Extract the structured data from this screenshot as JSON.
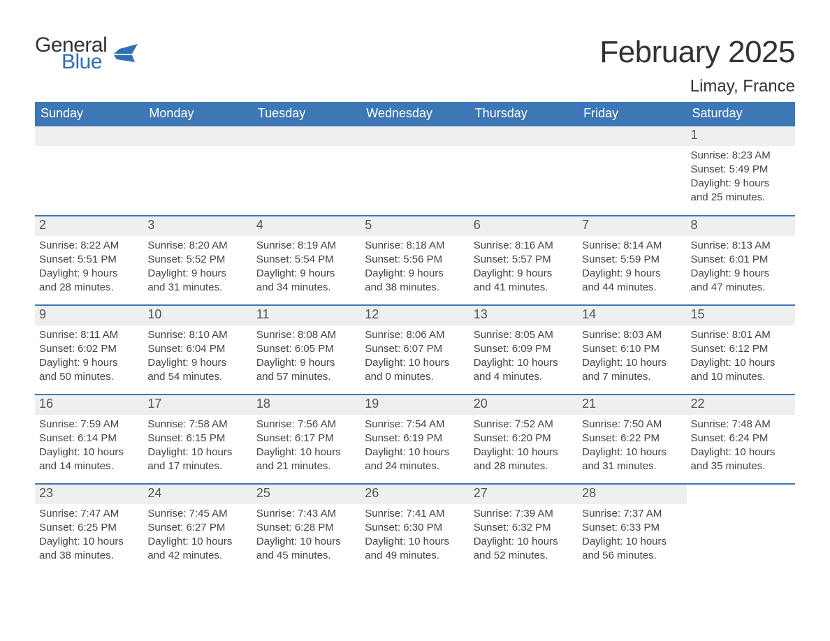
{
  "brand": {
    "word1": "General",
    "word2": "Blue",
    "word1_color": "#333333",
    "word2_color": "#2f6fb3",
    "icon_color": "#2f6fb3"
  },
  "title": {
    "month_year": "February 2025",
    "location": "Limay, France",
    "title_fontsize": 44,
    "location_fontsize": 24
  },
  "calendar": {
    "type": "calendar-table",
    "header_bg": "#3d77b6",
    "header_fg": "#ffffff",
    "row_divider_color": "#3d77b6",
    "daynum_bg": "#efefef",
    "daynum_fg": "#555555",
    "body_fg": "#444444",
    "background_color": "#ffffff",
    "header_fontsize": 18,
    "daynum_fontsize": 18,
    "body_fontsize": 15,
    "columns": [
      "Sunday",
      "Monday",
      "Tuesday",
      "Wednesday",
      "Thursday",
      "Friday",
      "Saturday"
    ],
    "weeks": [
      [
        null,
        null,
        null,
        null,
        null,
        null,
        {
          "n": "1",
          "sunrise": "Sunrise: 8:23 AM",
          "sunset": "Sunset: 5:49 PM",
          "day1": "Daylight: 9 hours",
          "day2": "and 25 minutes."
        }
      ],
      [
        {
          "n": "2",
          "sunrise": "Sunrise: 8:22 AM",
          "sunset": "Sunset: 5:51 PM",
          "day1": "Daylight: 9 hours",
          "day2": "and 28 minutes."
        },
        {
          "n": "3",
          "sunrise": "Sunrise: 8:20 AM",
          "sunset": "Sunset: 5:52 PM",
          "day1": "Daylight: 9 hours",
          "day2": "and 31 minutes."
        },
        {
          "n": "4",
          "sunrise": "Sunrise: 8:19 AM",
          "sunset": "Sunset: 5:54 PM",
          "day1": "Daylight: 9 hours",
          "day2": "and 34 minutes."
        },
        {
          "n": "5",
          "sunrise": "Sunrise: 8:18 AM",
          "sunset": "Sunset: 5:56 PM",
          "day1": "Daylight: 9 hours",
          "day2": "and 38 minutes."
        },
        {
          "n": "6",
          "sunrise": "Sunrise: 8:16 AM",
          "sunset": "Sunset: 5:57 PM",
          "day1": "Daylight: 9 hours",
          "day2": "and 41 minutes."
        },
        {
          "n": "7",
          "sunrise": "Sunrise: 8:14 AM",
          "sunset": "Sunset: 5:59 PM",
          "day1": "Daylight: 9 hours",
          "day2": "and 44 minutes."
        },
        {
          "n": "8",
          "sunrise": "Sunrise: 8:13 AM",
          "sunset": "Sunset: 6:01 PM",
          "day1": "Daylight: 9 hours",
          "day2": "and 47 minutes."
        }
      ],
      [
        {
          "n": "9",
          "sunrise": "Sunrise: 8:11 AM",
          "sunset": "Sunset: 6:02 PM",
          "day1": "Daylight: 9 hours",
          "day2": "and 50 minutes."
        },
        {
          "n": "10",
          "sunrise": "Sunrise: 8:10 AM",
          "sunset": "Sunset: 6:04 PM",
          "day1": "Daylight: 9 hours",
          "day2": "and 54 minutes."
        },
        {
          "n": "11",
          "sunrise": "Sunrise: 8:08 AM",
          "sunset": "Sunset: 6:05 PM",
          "day1": "Daylight: 9 hours",
          "day2": "and 57 minutes."
        },
        {
          "n": "12",
          "sunrise": "Sunrise: 8:06 AM",
          "sunset": "Sunset: 6:07 PM",
          "day1": "Daylight: 10 hours",
          "day2": "and 0 minutes."
        },
        {
          "n": "13",
          "sunrise": "Sunrise: 8:05 AM",
          "sunset": "Sunset: 6:09 PM",
          "day1": "Daylight: 10 hours",
          "day2": "and 4 minutes."
        },
        {
          "n": "14",
          "sunrise": "Sunrise: 8:03 AM",
          "sunset": "Sunset: 6:10 PM",
          "day1": "Daylight: 10 hours",
          "day2": "and 7 minutes."
        },
        {
          "n": "15",
          "sunrise": "Sunrise: 8:01 AM",
          "sunset": "Sunset: 6:12 PM",
          "day1": "Daylight: 10 hours",
          "day2": "and 10 minutes."
        }
      ],
      [
        {
          "n": "16",
          "sunrise": "Sunrise: 7:59 AM",
          "sunset": "Sunset: 6:14 PM",
          "day1": "Daylight: 10 hours",
          "day2": "and 14 minutes."
        },
        {
          "n": "17",
          "sunrise": "Sunrise: 7:58 AM",
          "sunset": "Sunset: 6:15 PM",
          "day1": "Daylight: 10 hours",
          "day2": "and 17 minutes."
        },
        {
          "n": "18",
          "sunrise": "Sunrise: 7:56 AM",
          "sunset": "Sunset: 6:17 PM",
          "day1": "Daylight: 10 hours",
          "day2": "and 21 minutes."
        },
        {
          "n": "19",
          "sunrise": "Sunrise: 7:54 AM",
          "sunset": "Sunset: 6:19 PM",
          "day1": "Daylight: 10 hours",
          "day2": "and 24 minutes."
        },
        {
          "n": "20",
          "sunrise": "Sunrise: 7:52 AM",
          "sunset": "Sunset: 6:20 PM",
          "day1": "Daylight: 10 hours",
          "day2": "and 28 minutes."
        },
        {
          "n": "21",
          "sunrise": "Sunrise: 7:50 AM",
          "sunset": "Sunset: 6:22 PM",
          "day1": "Daylight: 10 hours",
          "day2": "and 31 minutes."
        },
        {
          "n": "22",
          "sunrise": "Sunrise: 7:48 AM",
          "sunset": "Sunset: 6:24 PM",
          "day1": "Daylight: 10 hours",
          "day2": "and 35 minutes."
        }
      ],
      [
        {
          "n": "23",
          "sunrise": "Sunrise: 7:47 AM",
          "sunset": "Sunset: 6:25 PM",
          "day1": "Daylight: 10 hours",
          "day2": "and 38 minutes."
        },
        {
          "n": "24",
          "sunrise": "Sunrise: 7:45 AM",
          "sunset": "Sunset: 6:27 PM",
          "day1": "Daylight: 10 hours",
          "day2": "and 42 minutes."
        },
        {
          "n": "25",
          "sunrise": "Sunrise: 7:43 AM",
          "sunset": "Sunset: 6:28 PM",
          "day1": "Daylight: 10 hours",
          "day2": "and 45 minutes."
        },
        {
          "n": "26",
          "sunrise": "Sunrise: 7:41 AM",
          "sunset": "Sunset: 6:30 PM",
          "day1": "Daylight: 10 hours",
          "day2": "and 49 minutes."
        },
        {
          "n": "27",
          "sunrise": "Sunrise: 7:39 AM",
          "sunset": "Sunset: 6:32 PM",
          "day1": "Daylight: 10 hours",
          "day2": "and 52 minutes."
        },
        {
          "n": "28",
          "sunrise": "Sunrise: 7:37 AM",
          "sunset": "Sunset: 6:33 PM",
          "day1": "Daylight: 10 hours",
          "day2": "and 56 minutes."
        },
        null
      ]
    ]
  }
}
